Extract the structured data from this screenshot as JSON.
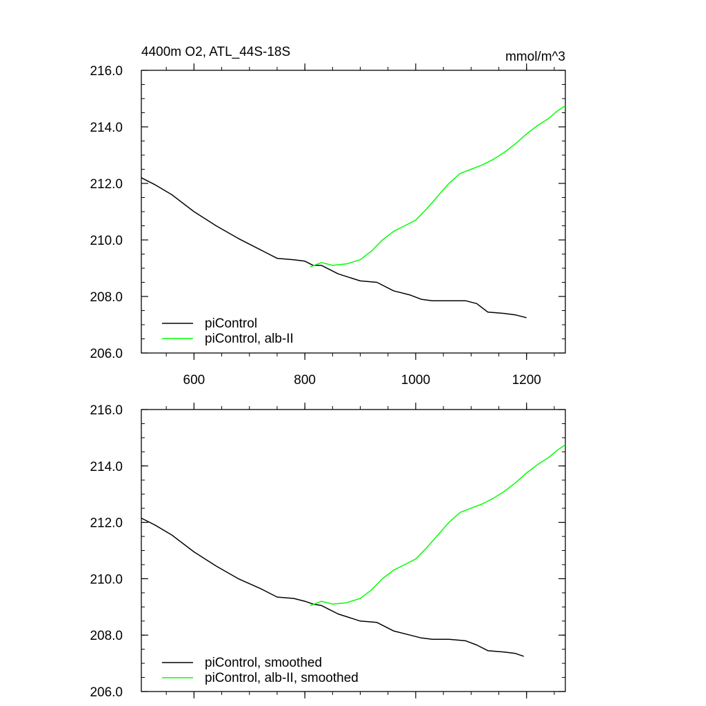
{
  "chart_data": [
    {
      "type": "line",
      "title": "4400m O2, ATL_44S-18S",
      "units": "mmol/m^3",
      "xlim": [
        505,
        1270
      ],
      "ylim": [
        206.0,
        216.0
      ],
      "xticks": [
        600,
        800,
        1000,
        1200
      ],
      "xtick_labels": [
        "600",
        "800",
        "1000",
        "1200"
      ],
      "yticks": [
        206.0,
        208.0,
        210.0,
        212.0,
        214.0,
        216.0
      ],
      "ytick_labels": [
        "206.0",
        "208.0",
        "210.0",
        "212.0",
        "214.0",
        "216.0"
      ],
      "legend_location": "bottom-left",
      "series": [
        {
          "name": "piControl",
          "color": "#000000",
          "x": [
            505,
            530,
            560,
            600,
            640,
            680,
            720,
            750,
            780,
            800,
            815,
            830,
            860,
            900,
            930,
            960,
            990,
            1010,
            1030,
            1060,
            1090,
            1110,
            1130,
            1160,
            1180,
            1200
          ],
          "y": [
            212.2,
            211.95,
            211.6,
            211.0,
            210.5,
            210.05,
            209.65,
            209.35,
            209.3,
            209.25,
            209.1,
            209.1,
            208.8,
            208.55,
            208.5,
            208.2,
            208.05,
            207.9,
            207.85,
            207.85,
            207.85,
            207.75,
            207.45,
            207.4,
            207.35,
            207.25
          ]
        },
        {
          "name": "piControl, alb-II",
          "color": "#00ff00",
          "x": [
            810,
            830,
            850,
            875,
            900,
            920,
            940,
            960,
            980,
            1000,
            1020,
            1040,
            1060,
            1080,
            1100,
            1120,
            1140,
            1160,
            1180,
            1200,
            1220,
            1240,
            1255,
            1270
          ],
          "y": [
            209.05,
            209.2,
            209.1,
            209.15,
            209.3,
            209.6,
            210.0,
            210.3,
            210.5,
            210.7,
            211.1,
            211.55,
            212.0,
            212.35,
            212.5,
            212.65,
            212.85,
            213.1,
            213.4,
            213.75,
            214.05,
            214.3,
            214.55,
            214.75
          ]
        }
      ]
    },
    {
      "type": "line",
      "title": "",
      "units": "",
      "xlim": [
        505,
        1270
      ],
      "ylim": [
        206.0,
        216.0
      ],
      "xticks": [
        600,
        800,
        1000,
        1200
      ],
      "xtick_labels": [],
      "yticks": [
        206.0,
        208.0,
        210.0,
        212.0,
        214.0,
        216.0
      ],
      "ytick_labels": [
        "206.0",
        "208.0",
        "210.0",
        "212.0",
        "214.0",
        "216.0"
      ],
      "legend_location": "bottom-left",
      "series": [
        {
          "name": "piControl, smoothed",
          "color": "#000000",
          "x": [
            505,
            530,
            560,
            600,
            640,
            680,
            720,
            750,
            780,
            800,
            815,
            830,
            860,
            900,
            930,
            960,
            990,
            1010,
            1030,
            1060,
            1090,
            1110,
            1130,
            1160,
            1180,
            1195
          ],
          "y": [
            212.15,
            211.9,
            211.55,
            210.95,
            210.45,
            210.0,
            209.65,
            209.35,
            209.3,
            209.2,
            209.1,
            209.05,
            208.75,
            208.5,
            208.45,
            208.15,
            208.0,
            207.9,
            207.85,
            207.85,
            207.8,
            207.65,
            207.45,
            207.4,
            207.35,
            207.25
          ]
        },
        {
          "name": "piControl, alb-II, smoothed",
          "color": "#00ff00",
          "x": [
            810,
            830,
            850,
            875,
            900,
            920,
            940,
            960,
            980,
            1000,
            1020,
            1040,
            1060,
            1080,
            1100,
            1120,
            1140,
            1160,
            1180,
            1200,
            1220,
            1240,
            1255,
            1270
          ],
          "y": [
            209.05,
            209.2,
            209.1,
            209.15,
            209.3,
            209.6,
            210.0,
            210.3,
            210.5,
            210.7,
            211.1,
            211.55,
            212.0,
            212.35,
            212.5,
            212.65,
            212.85,
            213.1,
            213.4,
            213.75,
            214.05,
            214.3,
            214.55,
            214.75
          ]
        }
      ]
    }
  ]
}
